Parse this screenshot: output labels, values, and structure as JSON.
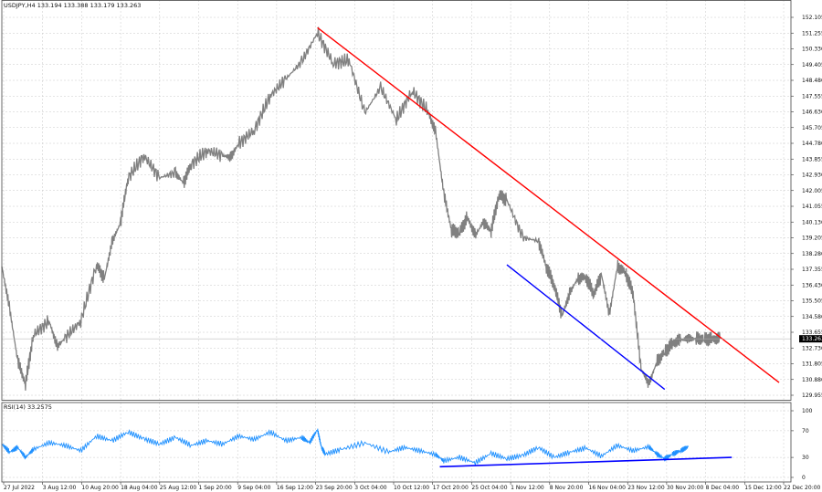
{
  "chart_data": [
    {
      "type": "line",
      "title": "USDJPY,H4 133.194 133.388 133.179 133.263",
      "current_price": "133.263",
      "ylim": [
        129.955,
        152.105
      ],
      "y_ticks": [
        "152.105",
        "151.255",
        "150.330",
        "149.405",
        "148.480",
        "147.555",
        "146.630",
        "145.705",
        "144.780",
        "143.855",
        "142.930",
        "142.005",
        "141.055",
        "140.130",
        "139.205",
        "138.280",
        "137.355",
        "136.430",
        "135.505",
        "134.580",
        "133.655",
        "132.730",
        "131.805",
        "130.880",
        "129.955"
      ],
      "x_ticks": [
        "27 Jul 2022",
        "3 Aug 12:00",
        "10 Aug 20:00",
        "18 Aug 04:00",
        "25 Aug 12:00",
        "1 Sep 20:00",
        "9 Sep 04:00",
        "16 Sep 12:00",
        "23 Sep 20:00",
        "3 Oct 04:00",
        "10 Oct 12:00",
        "17 Oct 20:00",
        "25 Oct 04:00",
        "1 Nov 12:00",
        "8 Nov 20:00",
        "16 Nov 04:00",
        "23 Nov 12:00",
        "30 Nov 20:00",
        "8 Dec 04:00",
        "15 Dec 12:00",
        "22 Dec 20:00"
      ],
      "x_range": [
        0,
        100
      ],
      "series": [
        {
          "color": "#808080",
          "x": [
            0,
            1,
            2,
            3,
            4,
            6,
            7,
            8,
            10,
            12,
            13,
            14,
            15,
            16,
            18,
            20,
            22,
            23,
            24,
            26,
            28,
            29,
            30,
            32,
            34,
            36,
            38,
            40,
            42,
            44,
            46,
            48,
            50,
            52,
            54,
            55,
            56,
            57,
            58,
            59,
            60,
            61,
            62,
            63,
            64,
            66,
            68,
            69,
            70,
            71,
            72,
            73,
            74,
            75,
            76,
            77,
            78,
            79,
            80,
            81,
            82,
            83,
            84,
            85,
            86,
            87,
            88,
            89,
            90,
            91
          ],
          "values": [
            137.5,
            135.0,
            132.0,
            130.6,
            133.5,
            134.3,
            132.8,
            133.3,
            134.3,
            137.6,
            136.8,
            139.0,
            140.0,
            142.7,
            144.0,
            142.7,
            143.0,
            142.4,
            143.5,
            144.3,
            144.0,
            143.9,
            144.7,
            145.5,
            147.5,
            148.5,
            149.5,
            151.2,
            149.4,
            149.6,
            146.5,
            148.0,
            146.1,
            147.8,
            146.6,
            145.3,
            141.8,
            139.6,
            139.5,
            140.4,
            139.3,
            140.1,
            139.6,
            141.7,
            141.4,
            139.2,
            139.0,
            137.5,
            136.4,
            134.6,
            136.0,
            136.8,
            136.9,
            135.9,
            137.0,
            134.7,
            137.5,
            137.2,
            135.9,
            131.5,
            130.6,
            131.9,
            132.5,
            133.0,
            133.2,
            133.263,
            133.263,
            133.263,
            133.263,
            133.263
          ]
        }
      ],
      "trendlines": [
        {
          "color": "#ff0000",
          "points": [
            [
              40,
              151.5
            ],
            [
              98.5,
              130.7
            ]
          ]
        },
        {
          "color": "#0000ff",
          "points": [
            [
              64,
              137.6
            ],
            [
              84,
              130.3
            ]
          ]
        }
      ]
    },
    {
      "type": "line",
      "title": "RSI(14) 33.2575",
      "ylim": [
        0,
        100
      ],
      "y_ticks": [
        "100",
        "70",
        "30",
        "0"
      ],
      "levels": [
        30,
        70
      ],
      "series": [
        {
          "color": "#1e90ff",
          "x": [
            0,
            1,
            2,
            3,
            4,
            6,
            8,
            10,
            12,
            14,
            16,
            18,
            20,
            22,
            24,
            26,
            28,
            30,
            32,
            34,
            36,
            38,
            39,
            40,
            40.5,
            41,
            43,
            46,
            49,
            51,
            53,
            55,
            56,
            58,
            60,
            62,
            64,
            66,
            68,
            70,
            72,
            74,
            76,
            78,
            80,
            82,
            83,
            84,
            85,
            86,
            87
          ],
          "values": [
            50,
            38,
            45,
            30,
            42,
            52,
            48,
            40,
            62,
            55,
            68,
            58,
            50,
            60,
            48,
            55,
            50,
            62,
            57,
            68,
            55,
            60,
            52,
            72,
            45,
            35,
            42,
            52,
            38,
            45,
            40,
            34,
            25,
            30,
            22,
            36,
            28,
            33,
            45,
            30,
            38,
            44,
            32,
            48,
            40,
            46,
            35,
            28,
            35,
            40,
            46
          ]
        }
      ],
      "trendlines": [
        {
          "color": "#0000ff",
          "points": [
            [
              55.5,
              16
            ],
            [
              92.5,
              30
            ]
          ]
        }
      ]
    }
  ]
}
